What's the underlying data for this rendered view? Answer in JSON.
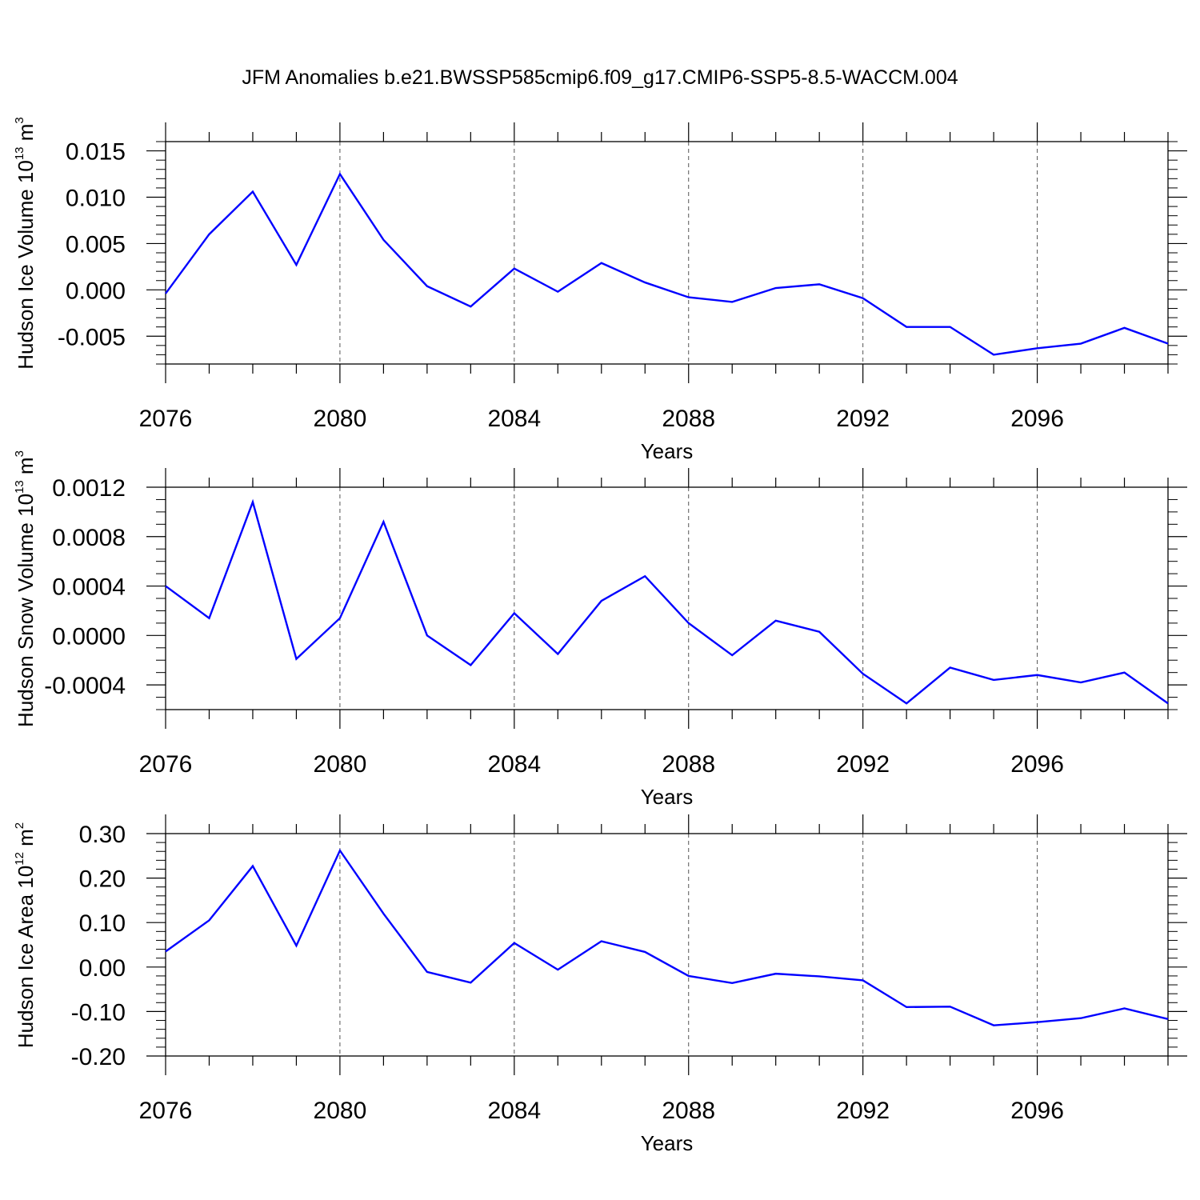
{
  "figure": {
    "title": "JFM Anomalies b.e21.BWSSP585cmip6.f09_g17.CMIP6-SSP5-8.5-WACCM.004"
  },
  "colors": {
    "series": "#0000ff",
    "axis": "#000000",
    "grid": "#555555"
  },
  "chart_data": [
    {
      "type": "line",
      "title": "",
      "ylabel_main": "Hudson Ice Volume 10",
      "ylabel_exp": "13",
      "ylabel_unit": " m",
      "ylabel_unit_exp": "3",
      "xlabel": "Years",
      "xlim": [
        2076,
        2099
      ],
      "ylim": [
        -0.008,
        0.016
      ],
      "xticks": [
        2076,
        2080,
        2084,
        2088,
        2092,
        2096
      ],
      "xtick_labels": [
        "2076",
        "2080",
        "2084",
        "2088",
        "2092",
        "2096"
      ],
      "yticks": [
        -0.005,
        0.0,
        0.005,
        0.01,
        0.015
      ],
      "ytick_labels": [
        "-0.005",
        "0.000",
        "0.005",
        "0.010",
        "0.015"
      ],
      "yminor_step": 0.001,
      "vgrid": true,
      "x": [
        2076,
        2077,
        2078,
        2079,
        2080,
        2081,
        2082,
        2083,
        2084,
        2085,
        2086,
        2087,
        2088,
        2089,
        2090,
        2091,
        2092,
        2093,
        2094,
        2095,
        2096,
        2097,
        2098,
        2099
      ],
      "series": [
        {
          "values": [
            -0.0004,
            0.006,
            0.0106,
            0.0027,
            0.0125,
            0.0054,
            0.0004,
            -0.0018,
            0.0023,
            -0.0002,
            0.0029,
            0.0008,
            -0.0008,
            -0.0013,
            0.0002,
            0.0006,
            -0.0009,
            -0.004,
            -0.004,
            -0.007,
            -0.0063,
            -0.0058,
            -0.0041,
            -0.0058
          ]
        }
      ]
    },
    {
      "type": "line",
      "title": "",
      "ylabel_main": "Hudson Snow Volume 10",
      "ylabel_exp": "13",
      "ylabel_unit": " m",
      "ylabel_unit_exp": "3",
      "xlabel": "Years",
      "xlim": [
        2076,
        2099
      ],
      "ylim": [
        -0.0006,
        0.0012
      ],
      "xticks": [
        2076,
        2080,
        2084,
        2088,
        2092,
        2096
      ],
      "xtick_labels": [
        "2076",
        "2080",
        "2084",
        "2088",
        "2092",
        "2096"
      ],
      "yticks": [
        -0.0004,
        0.0,
        0.0004,
        0.0008,
        0.0012
      ],
      "ytick_labels": [
        "-0.0004",
        "0.0000",
        "0.0004",
        "0.0008",
        "0.0012"
      ],
      "yminor_step": 0.0001,
      "vgrid": true,
      "x": [
        2076,
        2077,
        2078,
        2079,
        2080,
        2081,
        2082,
        2083,
        2084,
        2085,
        2086,
        2087,
        2088,
        2089,
        2090,
        2091,
        2092,
        2093,
        2094,
        2095,
        2096,
        2097,
        2098,
        2099
      ],
      "series": [
        {
          "values": [
            0.0004,
            0.00014,
            0.00108,
            -0.00019,
            0.00014,
            0.00092,
            0.0,
            -0.00024,
            0.00018,
            -0.00015,
            0.00028,
            0.00048,
            0.0001,
            -0.00016,
            0.00012,
            3e-05,
            -0.00031,
            -0.00055,
            -0.00026,
            -0.00036,
            -0.00032,
            -0.00038,
            -0.0003,
            -0.00055
          ]
        }
      ]
    },
    {
      "type": "line",
      "title": "",
      "ylabel_main": "Hudson Ice Area 10",
      "ylabel_exp": "12",
      "ylabel_unit": " m",
      "ylabel_unit_exp": "2",
      "xlabel": "Years",
      "xlim": [
        2076,
        2099
      ],
      "ylim": [
        -0.2,
        0.3
      ],
      "xticks": [
        2076,
        2080,
        2084,
        2088,
        2092,
        2096
      ],
      "xtick_labels": [
        "2076",
        "2080",
        "2084",
        "2088",
        "2092",
        "2096"
      ],
      "yticks": [
        -0.2,
        -0.1,
        0.0,
        0.1,
        0.2,
        0.3
      ],
      "ytick_labels": [
        "-0.20",
        "-0.10",
        "0.00",
        "0.10",
        "0.20",
        "0.30"
      ],
      "yminor_step": 0.02,
      "vgrid": true,
      "x": [
        2076,
        2077,
        2078,
        2079,
        2080,
        2081,
        2082,
        2083,
        2084,
        2085,
        2086,
        2087,
        2088,
        2089,
        2090,
        2091,
        2092,
        2093,
        2094,
        2095,
        2096,
        2097,
        2098,
        2099
      ],
      "series": [
        {
          "values": [
            0.035,
            0.105,
            0.227,
            0.048,
            0.262,
            0.12,
            -0.011,
            -0.035,
            0.054,
            -0.006,
            0.058,
            0.034,
            -0.02,
            -0.036,
            -0.015,
            -0.021,
            -0.03,
            -0.09,
            -0.089,
            -0.131,
            -0.124,
            -0.115,
            -0.093,
            -0.117
          ]
        }
      ]
    }
  ]
}
